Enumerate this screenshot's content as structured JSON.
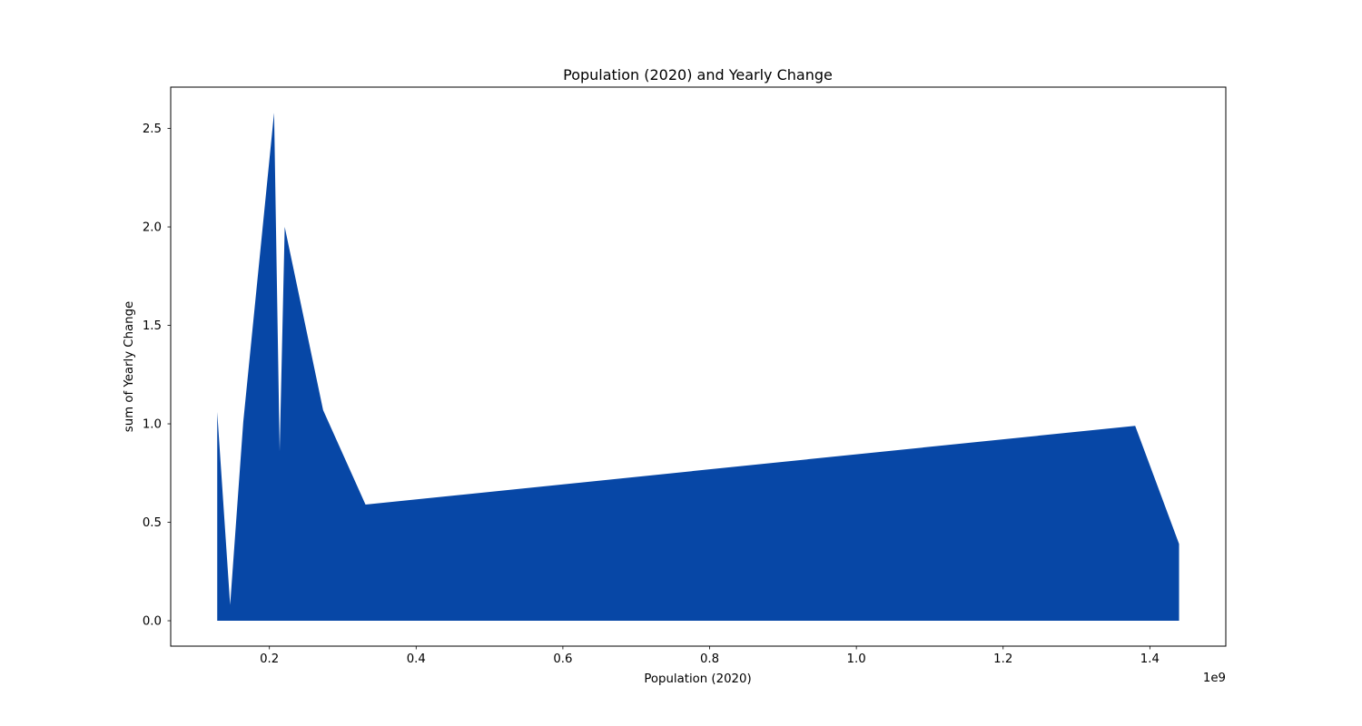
{
  "chart_data": {
    "type": "area",
    "title": "Population (2020) and Yearly Change",
    "xlabel": "Population (2020)",
    "ylabel": "sum of Yearly Change",
    "x_offset_label": "1e9",
    "x_scale": 1000000000,
    "xlim": [
      0.0655,
      1.5035
    ],
    "ylim": [
      -0.129,
      2.71
    ],
    "x_ticks": [
      0.2,
      0.4,
      0.6,
      0.8,
      1.0,
      1.2,
      1.4
    ],
    "x_tick_labels": [
      "0.2",
      "0.4",
      "0.6",
      "0.8",
      "1.0",
      "1.2",
      "1.4"
    ],
    "y_ticks": [
      0.0,
      0.5,
      1.0,
      1.5,
      2.0,
      2.5
    ],
    "y_tick_labels": [
      "0.0",
      "0.5",
      "1.0",
      "1.5",
      "2.0",
      "2.5"
    ],
    "grid": false,
    "legend": "none",
    "fill_color": "#0747a6",
    "series": [
      {
        "x": [
          0.1289,
          0.1465,
          0.1644,
          0.2064,
          0.214,
          0.2209,
          0.2732,
          0.331,
          1.38,
          1.4398
        ],
        "y": [
          1.06,
          0.08,
          1.01,
          2.58,
          0.86,
          2.0,
          1.07,
          0.59,
          0.99,
          0.39
        ]
      }
    ]
  }
}
